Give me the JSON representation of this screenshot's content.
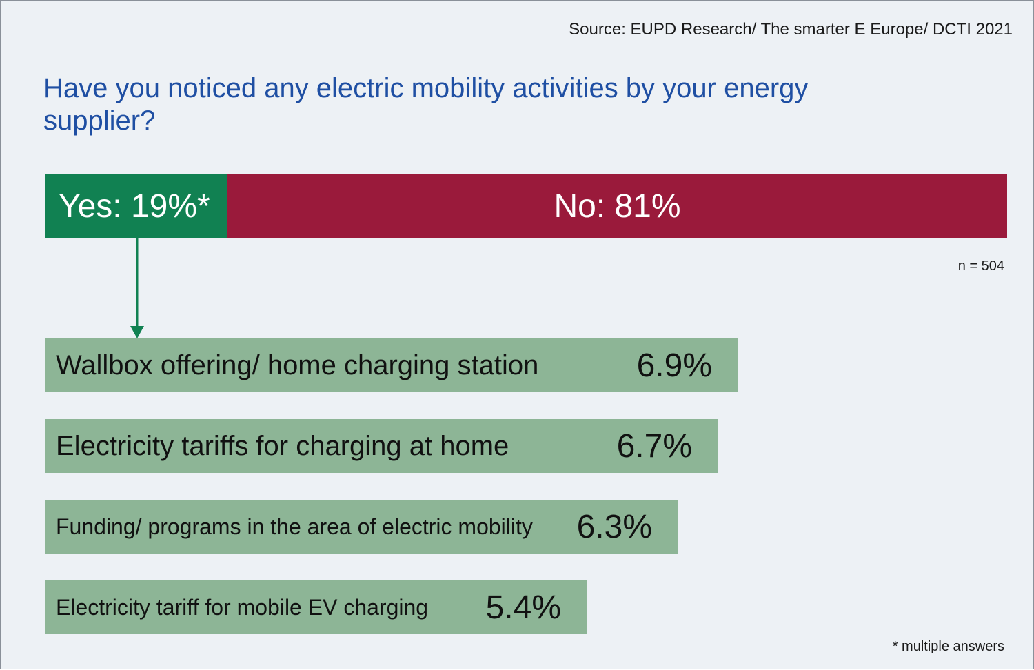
{
  "source": "Source: EUPD Research/ The smarter E Europe/ DCTI 2021",
  "colors": {
    "background": "#edf1f5",
    "title": "#1f4fa3",
    "yes": "#118152",
    "no": "#9a1a3b",
    "bar": "#8db596",
    "arrow": "#118152"
  },
  "sample_size": "n = 504",
  "footnote": "* multiple answers",
  "chart_data": [
    {
      "type": "bar",
      "orientation": "horizontal-stacked",
      "title": "Have you noticed any electric mobility activities by your energy supplier?",
      "categories": [
        "Yes",
        "No"
      ],
      "values": [
        19,
        81
      ],
      "unit": "%",
      "data_labels": [
        "Yes: 19%*",
        "No: 81%"
      ]
    },
    {
      "type": "bar",
      "orientation": "horizontal",
      "categories": [
        "Wallbox offering/ home charging station",
        "Electricity tariffs for charging at home",
        "Funding/ programs in the area of electric mobility",
        "Electricity tariff for mobile EV charging"
      ],
      "values": [
        6.9,
        6.7,
        6.3,
        5.4
      ],
      "unit": "%",
      "data_labels": [
        "6.9%",
        "6.7%",
        "6.3%",
        "5.4%"
      ]
    }
  ]
}
